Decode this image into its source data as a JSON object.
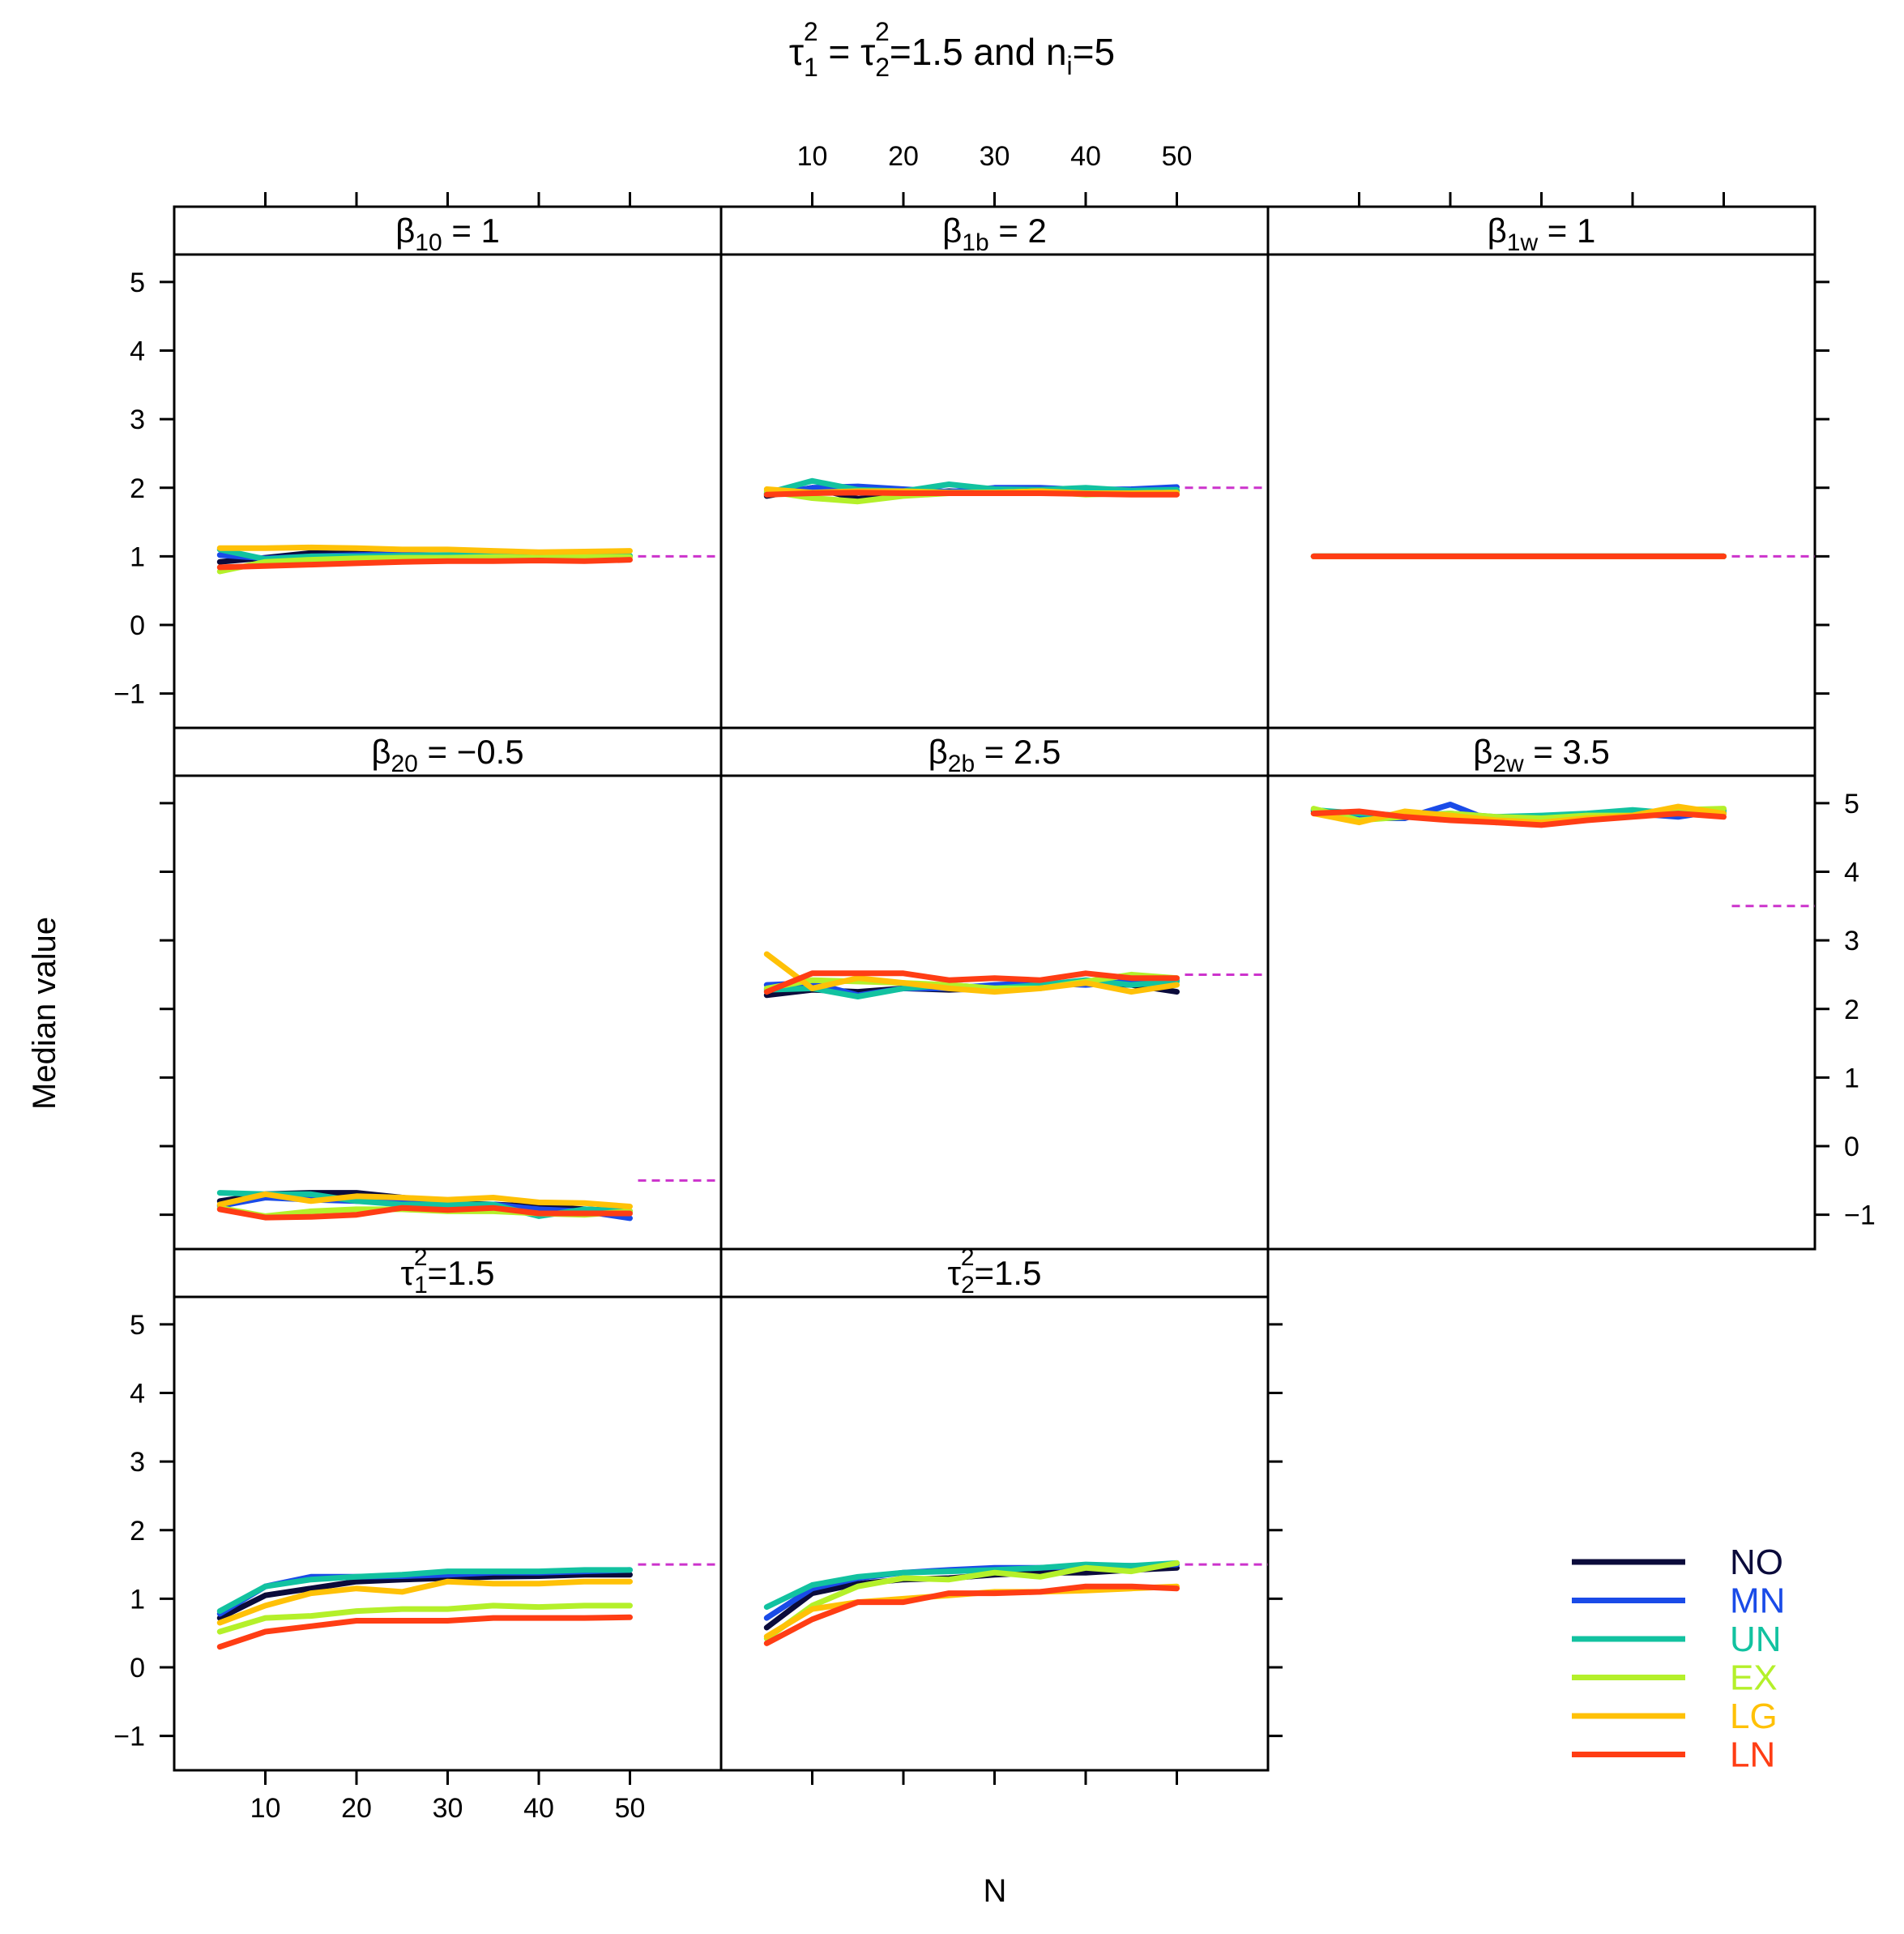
{
  "title": {
    "tau": "τ",
    "sub1": "1",
    "sup1": "2",
    "eq": " = ",
    "sub2": "2",
    "sup2": "2",
    "rest": "=1.5 and n",
    "sub3": "i",
    "end": "=5"
  },
  "axes": {
    "xlabel": "N",
    "ylabel": "Median value",
    "x_ticks": [
      10,
      20,
      30,
      40,
      50
    ],
    "y_ticks": [
      -1,
      0,
      1,
      2,
      3,
      4,
      5
    ],
    "y_tick_labels": [
      "−1",
      "0",
      "1",
      "2",
      "3",
      "4",
      "5"
    ]
  },
  "legend": {
    "placement": "bottom-right",
    "entries": [
      {
        "label": "NO",
        "color": "#0b0b3b"
      },
      {
        "label": "MN",
        "color": "#1a4be8"
      },
      {
        "label": "UN",
        "color": "#12c2a0"
      },
      {
        "label": "EX",
        "color": "#b4f02a"
      },
      {
        "label": "LG",
        "color": "#ffc107"
      },
      {
        "label": "LN",
        "color": "#ff3d14"
      }
    ]
  },
  "chart_data": {
    "type": "line",
    "title": "τ1² = τ2²=1.5 and ni=5",
    "xlabel": "N",
    "ylabel": "Median value",
    "xlim": [
      0,
      60
    ],
    "ylim": [
      -1.5,
      5.4
    ],
    "x": [
      5,
      10,
      15,
      20,
      25,
      30,
      35,
      40,
      45,
      50
    ],
    "reference_style": "dashed, magenta (#cc33cc)",
    "panels": [
      {
        "id": "b10",
        "strip": {
          "base": "β",
          "sub": "10",
          "rest": " = 1"
        },
        "true_value": 1,
        "series": [
          {
            "name": "NO",
            "values": [
              0.92,
              0.98,
              1.05,
              1.04,
              1.02,
              1.01,
              1.0,
              1.0,
              1.0,
              1.0
            ]
          },
          {
            "name": "MN",
            "values": [
              1.02,
              0.97,
              1.0,
              1.02,
              1.03,
              1.01,
              1.02,
              1.0,
              1.01,
              1.0
            ]
          },
          {
            "name": "UN",
            "values": [
              1.1,
              0.96,
              1.0,
              1.0,
              1.01,
              1.02,
              1.01,
              1.0,
              1.02,
              1.01
            ]
          },
          {
            "name": "EX",
            "values": [
              0.78,
              0.92,
              0.95,
              0.97,
              0.98,
              0.98,
              0.99,
              0.98,
              0.99,
              0.99
            ]
          },
          {
            "name": "LG",
            "values": [
              1.12,
              1.12,
              1.13,
              1.12,
              1.1,
              1.1,
              1.08,
              1.06,
              1.07,
              1.08
            ]
          },
          {
            "name": "LN",
            "values": [
              0.84,
              0.86,
              0.88,
              0.9,
              0.92,
              0.93,
              0.93,
              0.94,
              0.93,
              0.95
            ]
          }
        ]
      },
      {
        "id": "b1b",
        "strip": {
          "base": "β",
          "sub": "1b",
          "rest": " = 2"
        },
        "true_value": 2,
        "series": [
          {
            "name": "NO",
            "values": [
              1.88,
              2.0,
              1.84,
              1.9,
              1.95,
              1.93,
              1.95,
              1.95,
              1.96,
              1.95
            ]
          },
          {
            "name": "MN",
            "values": [
              1.9,
              2.0,
              2.02,
              1.98,
              1.94,
              2.0,
              2.0,
              1.97,
              1.98,
              2.01
            ]
          },
          {
            "name": "UN",
            "values": [
              1.92,
              2.1,
              1.97,
              1.95,
              2.05,
              1.98,
              1.97,
              2.0,
              1.96,
              1.97
            ]
          },
          {
            "name": "EX",
            "values": [
              1.95,
              1.85,
              1.8,
              1.88,
              1.92,
              1.93,
              1.95,
              1.9,
              1.92,
              1.93
            ]
          },
          {
            "name": "LG",
            "values": [
              1.98,
              1.93,
              1.95,
              1.95,
              1.93,
              1.93,
              1.95,
              1.92,
              1.92,
              1.93
            ]
          },
          {
            "name": "LN",
            "values": [
              1.9,
              1.92,
              1.93,
              1.92,
              1.92,
              1.92,
              1.92,
              1.91,
              1.9,
              1.9
            ]
          }
        ]
      },
      {
        "id": "b1w",
        "strip": {
          "base": "β",
          "sub": "1w",
          "rest": " = 1"
        },
        "true_value": 1,
        "series": [
          {
            "name": "NO",
            "values": [
              1.0,
              1.0,
              1.0,
              1.0,
              1.0,
              1.0,
              1.0,
              1.0,
              1.0,
              1.0
            ]
          },
          {
            "name": "MN",
            "values": [
              1.0,
              1.0,
              1.0,
              1.0,
              1.0,
              1.0,
              1.0,
              1.0,
              1.0,
              1.0
            ]
          },
          {
            "name": "UN",
            "values": [
              1.0,
              1.0,
              1.0,
              1.0,
              1.0,
              1.0,
              1.0,
              1.0,
              1.0,
              1.0
            ]
          },
          {
            "name": "EX",
            "values": [
              1.0,
              1.0,
              1.0,
              1.0,
              1.0,
              1.0,
              1.0,
              1.0,
              1.0,
              1.0
            ]
          },
          {
            "name": "LG",
            "values": [
              1.0,
              1.0,
              1.0,
              1.0,
              1.0,
              1.0,
              1.0,
              1.0,
              1.0,
              1.0
            ]
          },
          {
            "name": "LN",
            "values": [
              1.0,
              1.0,
              1.0,
              1.0,
              1.0,
              1.0,
              1.0,
              1.0,
              1.0,
              1.0
            ]
          }
        ]
      },
      {
        "id": "b20",
        "strip": {
          "base": "β",
          "sub": "20",
          "rest": " = −0.5"
        },
        "true_value": -0.5,
        "series": [
          {
            "name": "NO",
            "values": [
              -0.8,
              -0.7,
              -0.68,
              -0.68,
              -0.75,
              -0.83,
              -0.85,
              -0.88,
              -0.92,
              -0.95
            ]
          },
          {
            "name": "MN",
            "values": [
              -0.87,
              -0.75,
              -0.78,
              -0.8,
              -0.8,
              -0.85,
              -0.85,
              -0.92,
              -0.95,
              -1.05
            ]
          },
          {
            "name": "UN",
            "values": [
              -0.68,
              -0.7,
              -0.7,
              -0.8,
              -0.85,
              -0.85,
              -0.85,
              -1.02,
              -0.92,
              -0.95
            ]
          },
          {
            "name": "EX",
            "values": [
              -0.9,
              -1.02,
              -0.95,
              -0.92,
              -0.92,
              -0.95,
              -0.95,
              -0.98,
              -1.0,
              -0.95
            ]
          },
          {
            "name": "LG",
            "values": [
              -0.85,
              -0.7,
              -0.8,
              -0.73,
              -0.75,
              -0.78,
              -0.75,
              -0.82,
              -0.83,
              -0.88
            ]
          },
          {
            "name": "LN",
            "values": [
              -0.92,
              -1.04,
              -1.03,
              -1.0,
              -0.9,
              -0.93,
              -0.9,
              -0.98,
              -0.98,
              -0.98
            ]
          }
        ]
      },
      {
        "id": "b2b",
        "strip": {
          "base": "β",
          "sub": "2b",
          "rest": " = 2.5"
        },
        "true_value": 2.5,
        "series": [
          {
            "name": "NO",
            "values": [
              2.2,
              2.28,
              2.25,
              2.3,
              2.28,
              2.3,
              2.32,
              2.38,
              2.35,
              2.25
            ]
          },
          {
            "name": "MN",
            "values": [
              2.35,
              2.38,
              2.2,
              2.3,
              2.3,
              2.35,
              2.38,
              2.35,
              2.4,
              2.42
            ]
          },
          {
            "name": "UN",
            "values": [
              2.28,
              2.3,
              2.18,
              2.3,
              2.35,
              2.3,
              2.35,
              2.42,
              2.35,
              2.4
            ]
          },
          {
            "name": "EX",
            "values": [
              2.3,
              2.42,
              2.4,
              2.38,
              2.35,
              2.3,
              2.3,
              2.4,
              2.5,
              2.45
            ]
          },
          {
            "name": "LG",
            "values": [
              2.8,
              2.3,
              2.45,
              2.38,
              2.3,
              2.25,
              2.3,
              2.38,
              2.25,
              2.35
            ]
          },
          {
            "name": "LN",
            "values": [
              2.25,
              2.52,
              2.52,
              2.52,
              2.42,
              2.45,
              2.42,
              2.52,
              2.45,
              2.45
            ]
          }
        ]
      },
      {
        "id": "b2w",
        "strip": {
          "base": "β",
          "sub": "2w",
          "rest": " = 3.5"
        },
        "true_value": 3.5,
        "series": [
          {
            "name": "NO",
            "values": [
              4.88,
              4.85,
              4.8,
              4.8,
              4.78,
              4.75,
              4.8,
              4.85,
              4.85,
              4.85
            ]
          },
          {
            "name": "MN",
            "values": [
              4.9,
              4.78,
              4.78,
              4.98,
              4.72,
              4.8,
              4.82,
              4.85,
              4.8,
              4.9
            ]
          },
          {
            "name": "UN",
            "values": [
              4.9,
              4.85,
              4.82,
              4.85,
              4.8,
              4.82,
              4.85,
              4.9,
              4.85,
              4.88
            ]
          },
          {
            "name": "EX",
            "values": [
              4.92,
              4.75,
              4.8,
              4.85,
              4.8,
              4.78,
              4.82,
              4.82,
              4.9,
              4.92
            ]
          },
          {
            "name": "LG",
            "values": [
              4.85,
              4.72,
              4.88,
              4.82,
              4.75,
              4.72,
              4.78,
              4.82,
              4.95,
              4.85
            ]
          },
          {
            "name": "LN",
            "values": [
              4.85,
              4.88,
              4.8,
              4.75,
              4.72,
              4.68,
              4.75,
              4.8,
              4.85,
              4.8
            ]
          }
        ]
      },
      {
        "id": "t1",
        "strip": {
          "base": "τ",
          "sub": "1",
          "sup": "2",
          "rest": "=1.5"
        },
        "true_value": 1.5,
        "series": [
          {
            "name": "NO",
            "values": [
              0.72,
              1.05,
              1.15,
              1.25,
              1.28,
              1.3,
              1.32,
              1.33,
              1.35,
              1.35
            ]
          },
          {
            "name": "MN",
            "values": [
              0.78,
              1.18,
              1.32,
              1.32,
              1.33,
              1.35,
              1.38,
              1.38,
              1.4,
              1.42
            ]
          },
          {
            "name": "UN",
            "values": [
              0.82,
              1.18,
              1.28,
              1.32,
              1.35,
              1.4,
              1.4,
              1.4,
              1.42,
              1.42
            ]
          },
          {
            "name": "EX",
            "values": [
              0.52,
              0.72,
              0.75,
              0.82,
              0.85,
              0.85,
              0.9,
              0.88,
              0.9,
              0.9
            ]
          },
          {
            "name": "LG",
            "values": [
              0.65,
              0.9,
              1.08,
              1.15,
              1.1,
              1.25,
              1.22,
              1.22,
              1.25,
              1.25
            ]
          },
          {
            "name": "LN",
            "values": [
              0.3,
              0.52,
              0.6,
              0.68,
              0.68,
              0.68,
              0.72,
              0.72,
              0.72,
              0.73
            ]
          }
        ]
      },
      {
        "id": "t2",
        "strip": {
          "base": "τ",
          "sub": "2",
          "sup": "2",
          "rest": "=1.5"
        },
        "true_value": 1.5,
        "series": [
          {
            "name": "NO",
            "values": [
              0.58,
              1.08,
              1.22,
              1.28,
              1.3,
              1.35,
              1.38,
              1.38,
              1.42,
              1.45
            ]
          },
          {
            "name": "MN",
            "values": [
              0.72,
              1.15,
              1.3,
              1.38,
              1.42,
              1.45,
              1.45,
              1.48,
              1.48,
              1.5
            ]
          },
          {
            "name": "UN",
            "values": [
              0.88,
              1.2,
              1.32,
              1.38,
              1.4,
              1.42,
              1.45,
              1.5,
              1.48,
              1.52
            ]
          },
          {
            "name": "EX",
            "values": [
              0.42,
              0.9,
              1.18,
              1.3,
              1.28,
              1.38,
              1.32,
              1.45,
              1.4,
              1.52
            ]
          },
          {
            "name": "LG",
            "values": [
              0.45,
              0.85,
              0.95,
              1.0,
              1.05,
              1.1,
              1.1,
              1.12,
              1.15,
              1.18
            ]
          },
          {
            "name": "LN",
            "values": [
              0.35,
              0.7,
              0.95,
              0.95,
              1.08,
              1.08,
              1.1,
              1.18,
              1.18,
              1.15
            ]
          }
        ]
      }
    ]
  }
}
